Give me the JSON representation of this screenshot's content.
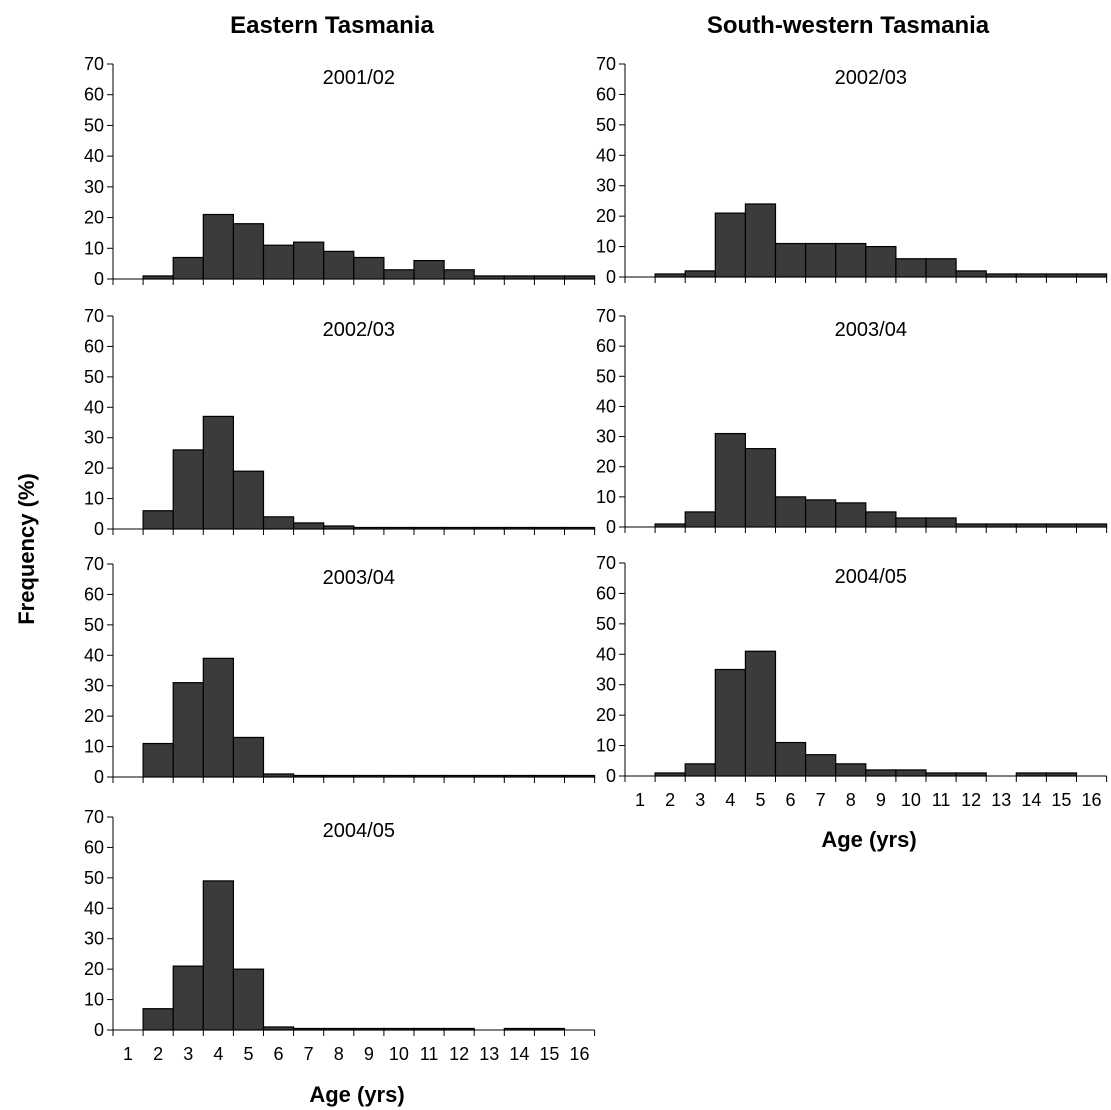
{
  "figure": {
    "columns": [
      "Eastern Tasmania",
      "South-western Tasmania"
    ],
    "ylabel": "Frequency (%)",
    "xlabel": "Age (yrs)"
  },
  "chart_data": [
    {
      "type": "bar",
      "column": "Eastern Tasmania",
      "title": "2001/02",
      "categories": [
        "1",
        "2",
        "3",
        "4",
        "5",
        "6",
        "7",
        "8",
        "9",
        "10",
        "11",
        "12",
        "13",
        "14",
        "15",
        "16"
      ],
      "values": [
        0,
        1,
        7,
        21,
        18,
        11,
        12,
        9,
        7,
        3,
        6,
        3,
        1,
        1,
        1,
        1
      ],
      "ylim": [
        0,
        70
      ],
      "yticks": [
        0,
        10,
        20,
        30,
        40,
        50,
        60,
        70
      ],
      "grid": false,
      "show_xticklabels": false
    },
    {
      "type": "bar",
      "column": "Eastern Tasmania",
      "title": "2002/03",
      "categories": [
        "1",
        "2",
        "3",
        "4",
        "5",
        "6",
        "7",
        "8",
        "9",
        "10",
        "11",
        "12",
        "13",
        "14",
        "15",
        "16"
      ],
      "values": [
        0,
        6,
        26,
        37,
        19,
        4,
        2,
        1,
        0.5,
        0.5,
        0.5,
        0.5,
        0.5,
        0.5,
        0.5,
        0.5
      ],
      "ylim": [
        0,
        70
      ],
      "yticks": [
        0,
        10,
        20,
        30,
        40,
        50,
        60,
        70
      ],
      "grid": false,
      "show_xticklabels": false
    },
    {
      "type": "bar",
      "column": "Eastern Tasmania",
      "title": "2003/04",
      "categories": [
        "1",
        "2",
        "3",
        "4",
        "5",
        "6",
        "7",
        "8",
        "9",
        "10",
        "11",
        "12",
        "13",
        "14",
        "15",
        "16"
      ],
      "values": [
        0,
        11,
        31,
        39,
        13,
        1,
        0.5,
        0.5,
        0.5,
        0.5,
        0.5,
        0.5,
        0.5,
        0.5,
        0.5,
        0.5
      ],
      "ylim": [
        0,
        70
      ],
      "yticks": [
        0,
        10,
        20,
        30,
        40,
        50,
        60,
        70
      ],
      "grid": false,
      "show_xticklabels": false
    },
    {
      "type": "bar",
      "column": "Eastern Tasmania",
      "title": "2004/05",
      "categories": [
        "1",
        "2",
        "3",
        "4",
        "5",
        "6",
        "7",
        "8",
        "9",
        "10",
        "11",
        "12",
        "13",
        "14",
        "15",
        "16"
      ],
      "values": [
        0,
        7,
        21,
        49,
        20,
        1,
        0.5,
        0.5,
        0.5,
        0.5,
        0.5,
        0.5,
        0,
        0.5,
        0.5,
        0
      ],
      "ylim": [
        0,
        70
      ],
      "yticks": [
        0,
        10,
        20,
        30,
        40,
        50,
        60,
        70
      ],
      "grid": false,
      "show_xticklabels": true
    },
    {
      "type": "bar",
      "column": "South-western Tasmania",
      "title": "2002/03",
      "categories": [
        "1",
        "2",
        "3",
        "4",
        "5",
        "6",
        "7",
        "8",
        "9",
        "10",
        "11",
        "12",
        "13",
        "14",
        "15",
        "16"
      ],
      "values": [
        0,
        1,
        2,
        21,
        24,
        11,
        11,
        11,
        10,
        6,
        6,
        2,
        1,
        1,
        1,
        1
      ],
      "ylim": [
        0,
        70
      ],
      "yticks": [
        0,
        10,
        20,
        30,
        40,
        50,
        60,
        70
      ],
      "grid": false,
      "show_xticklabels": false
    },
    {
      "type": "bar",
      "column": "South-western Tasmania",
      "title": "2003/04",
      "categories": [
        "1",
        "2",
        "3",
        "4",
        "5",
        "6",
        "7",
        "8",
        "9",
        "10",
        "11",
        "12",
        "13",
        "14",
        "15",
        "16"
      ],
      "values": [
        0,
        1,
        5,
        31,
        26,
        10,
        9,
        8,
        5,
        3,
        3,
        1,
        1,
        1,
        1,
        1
      ],
      "ylim": [
        0,
        70
      ],
      "yticks": [
        0,
        10,
        20,
        30,
        40,
        50,
        60,
        70
      ],
      "grid": false,
      "show_xticklabels": false
    },
    {
      "type": "bar",
      "column": "South-western Tasmania",
      "title": "2004/05",
      "categories": [
        "1",
        "2",
        "3",
        "4",
        "5",
        "6",
        "7",
        "8",
        "9",
        "10",
        "11",
        "12",
        "13",
        "14",
        "15",
        "16"
      ],
      "values": [
        0,
        1,
        4,
        35,
        41,
        11,
        7,
        4,
        2,
        2,
        1,
        1,
        0,
        1,
        1,
        0
      ],
      "ylim": [
        0,
        70
      ],
      "yticks": [
        0,
        10,
        20,
        30,
        40,
        50,
        60,
        70
      ],
      "grid": false,
      "show_xticklabels": true
    }
  ]
}
